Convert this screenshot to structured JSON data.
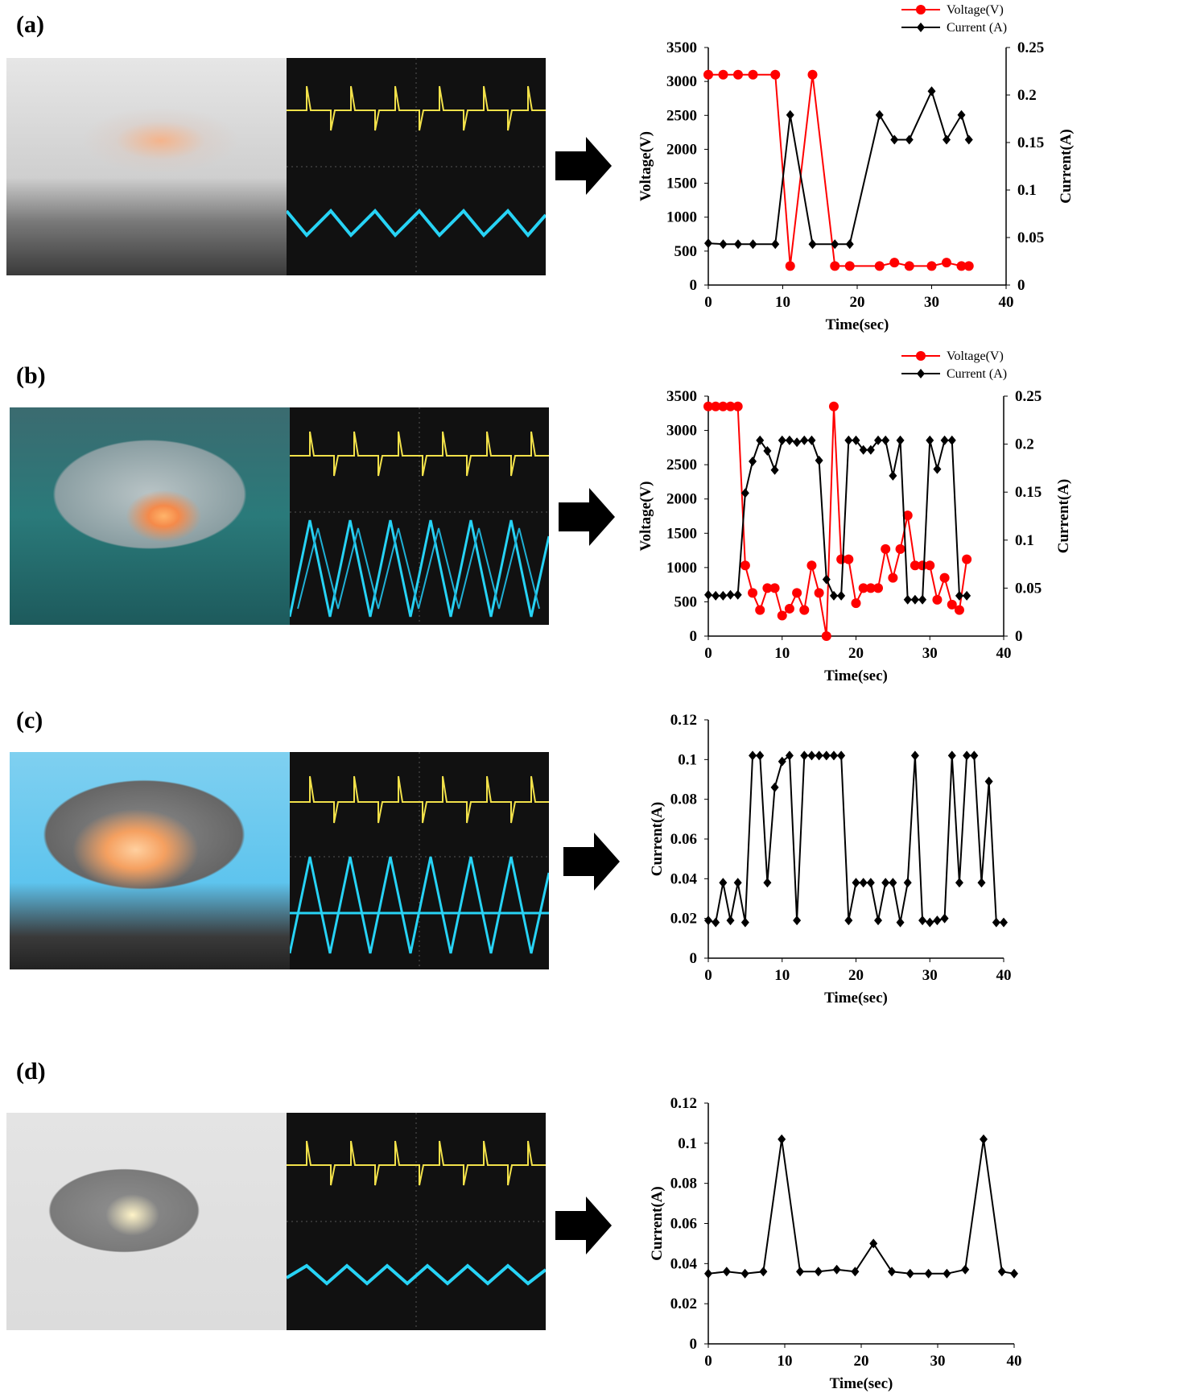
{
  "panels": [
    {
      "label": "(a)",
      "chart_data": {
        "type": "line",
        "dual_axis": true,
        "xlabel": "Time(sec)",
        "ylabel_left": "Voltage(V)",
        "ylabel_right": "Current(A)",
        "xlim": [
          0,
          40
        ],
        "xticks": [
          0,
          10,
          20,
          30,
          40
        ],
        "ylim_left": [
          0,
          3500
        ],
        "yticks_left": [
          0,
          500,
          1000,
          1500,
          2000,
          2500,
          3000,
          3500
        ],
        "ylim_right": [
          0,
          0.25
        ],
        "yticks_right": [
          "0",
          "0.05",
          "0.1",
          "0.15",
          "0.2",
          "0.25"
        ],
        "legend": "top-right",
        "series": [
          {
            "name": "Voltage(V)",
            "axis": "left",
            "color": "#ff0000",
            "marker": "circle",
            "x": [
              0,
              2,
              4,
              6,
              9,
              11,
              14,
              17,
              19,
              23,
              25,
              27,
              30,
              32,
              34,
              35
            ],
            "y": [
              3100,
              3100,
              3100,
              3100,
              3100,
              280,
              3100,
              280,
              280,
              280,
              330,
              280,
              280,
              330,
              280,
              280
            ]
          },
          {
            "name": "Current (A)",
            "axis": "right",
            "color": "#000000",
            "marker": "diamond",
            "x": [
              0,
              2,
              4,
              6,
              9,
              11,
              14,
              17,
              19,
              23,
              25,
              27,
              30,
              32,
              34,
              35
            ],
            "y": [
              0.044,
              0.043,
              0.043,
              0.043,
              0.043,
              0.179,
              0.043,
              0.043,
              0.043,
              0.179,
              0.153,
              0.153,
              0.204,
              0.153,
              0.179,
              0.153
            ]
          }
        ]
      }
    },
    {
      "label": "(b)",
      "chart_data": {
        "type": "line",
        "dual_axis": true,
        "xlabel": "Time(sec)",
        "ylabel_left": "Voltage(V)",
        "ylabel_right": "Current(A)",
        "xlim": [
          0,
          40
        ],
        "xticks": [
          0,
          10,
          20,
          30,
          40
        ],
        "ylim_left": [
          0,
          3500
        ],
        "yticks_left": [
          0,
          500,
          1000,
          1500,
          2000,
          2500,
          3000,
          3500
        ],
        "ylim_right": [
          0,
          0.25
        ],
        "yticks_right": [
          "0",
          "0.05",
          "0.1",
          "0.15",
          "0.2",
          "0.25"
        ],
        "legend": "top-right",
        "series": [
          {
            "name": "Voltage(V)",
            "axis": "left",
            "color": "#ff0000",
            "marker": "circle",
            "x": [
              0,
              1,
              2,
              3,
              4,
              5,
              6,
              7,
              8,
              9,
              10,
              11,
              12,
              13,
              14,
              15,
              16,
              17,
              18,
              19,
              20,
              21,
              22,
              23,
              24,
              25,
              26,
              27,
              28,
              29,
              30,
              31,
              32,
              33,
              34,
              35
            ],
            "y": [
              3350,
              3350,
              3350,
              3350,
              3350,
              1030,
              630,
              380,
              700,
              700,
              300,
              400,
              630,
              380,
              1030,
              630,
              0,
              3350,
              1120,
              1120,
              480,
              700,
              700,
              700,
              1270,
              850,
              1270,
              1760,
              1030,
              1030,
              1030,
              530,
              850,
              460,
              380,
              1120
            ]
          },
          {
            "name": "Current (A)",
            "axis": "right",
            "color": "#000000",
            "marker": "diamond",
            "x": [
              0,
              1,
              2,
              3,
              4,
              5,
              6,
              7,
              8,
              9,
              10,
              11,
              12,
              13,
              14,
              15,
              16,
              17,
              18,
              19,
              20,
              21,
              22,
              23,
              24,
              25,
              26,
              27,
              28,
              29,
              30,
              31,
              32,
              33,
              34,
              35
            ],
            "y": [
              0.043,
              0.042,
              0.042,
              0.043,
              0.043,
              0.149,
              0.182,
              0.204,
              0.193,
              0.173,
              0.204,
              0.204,
              0.202,
              0.204,
              0.204,
              0.183,
              0.059,
              0.042,
              0.042,
              0.204,
              0.204,
              0.194,
              0.194,
              0.204,
              0.204,
              0.167,
              0.204,
              0.038,
              0.038,
              0.038,
              0.204,
              0.174,
              0.204,
              0.204,
              0.042,
              0.042
            ]
          }
        ]
      }
    },
    {
      "label": "(c)",
      "chart_data": {
        "type": "line",
        "dual_axis": false,
        "xlabel": "Time(sec)",
        "ylabel_left": "Current(A)",
        "xlim": [
          0,
          40
        ],
        "xticks": [
          0,
          10,
          20,
          30,
          40
        ],
        "ylim_left": [
          0,
          0.12
        ],
        "yticks_left": [
          "0",
          "0.02",
          "0.04",
          "0.06",
          "0.08",
          "0.1",
          "0.12"
        ],
        "series": [
          {
            "name": "",
            "axis": "left",
            "color": "#000000",
            "marker": "diamond",
            "x": [
              0,
              1,
              2,
              3,
              4,
              5,
              6,
              7,
              8,
              9,
              10,
              11,
              12,
              13,
              14,
              15,
              16,
              17,
              18,
              19,
              20,
              21,
              22,
              23,
              24,
              25,
              26,
              27,
              28,
              29,
              30,
              31,
              32,
              33,
              34,
              35,
              36,
              37,
              38,
              39,
              40
            ],
            "y": [
              0.019,
              0.018,
              0.038,
              0.019,
              0.038,
              0.018,
              0.102,
              0.102,
              0.038,
              0.086,
              0.099,
              0.102,
              0.019,
              0.102,
              0.102,
              0.102,
              0.102,
              0.102,
              0.102,
              0.019,
              0.038,
              0.038,
              0.038,
              0.019,
              0.038,
              0.038,
              0.018,
              0.038,
              0.102,
              0.019,
              0.018,
              0.019,
              0.02,
              0.102,
              0.038,
              0.102,
              0.102,
              0.038,
              0.089,
              0.018,
              0.018
            ]
          }
        ]
      }
    },
    {
      "label": "(d)",
      "chart_data": {
        "type": "line",
        "dual_axis": false,
        "xlabel": "Time(sec)",
        "ylabel_left": "Current(A)",
        "xlim": [
          0,
          40
        ],
        "xticks": [
          0,
          10,
          20,
          30,
          40
        ],
        "ylim_left": [
          0,
          0.12
        ],
        "yticks_left": [
          "0",
          "0.02",
          "0.04",
          "0.06",
          "0.08",
          "0.1",
          "0.12"
        ],
        "series": [
          {
            "name": "",
            "axis": "left",
            "color": "#000000",
            "marker": "diamond",
            "x": [
              0,
              2.4,
              4.8,
              7.2,
              9.6,
              12,
              14.4,
              16.8,
              19.2,
              21.6,
              24,
              26.4,
              28.8,
              31.2,
              33.6,
              36,
              38.4,
              40
            ],
            "y": [
              0.035,
              0.036,
              0.035,
              0.036,
              0.102,
              0.036,
              0.036,
              0.037,
              0.036,
              0.05,
              0.036,
              0.035,
              0.035,
              0.035,
              0.037,
              0.102,
              0.036,
              0.035
            ]
          }
        ]
      }
    }
  ]
}
